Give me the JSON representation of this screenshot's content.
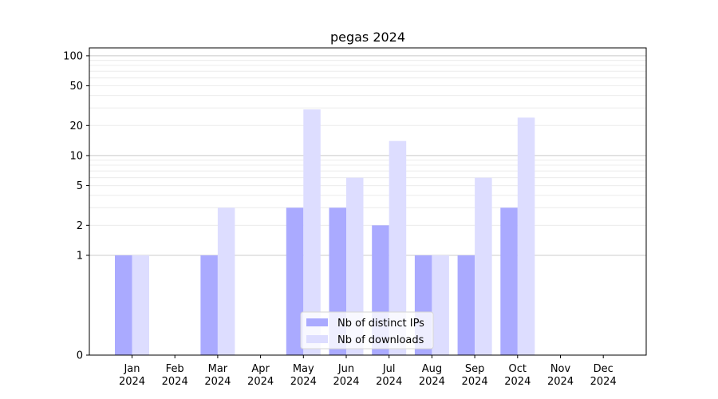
{
  "chart_data": {
    "type": "bar",
    "title": "pegas 2024",
    "xlabel": "",
    "ylabel": "",
    "y_scale": "symlog",
    "ylim": [
      0,
      120
    ],
    "y_ticks": [
      0,
      1,
      2,
      5,
      10,
      20,
      50,
      100
    ],
    "categories": [
      [
        "Jan",
        "2024"
      ],
      [
        "Feb",
        "2024"
      ],
      [
        "Mar",
        "2024"
      ],
      [
        "Apr",
        "2024"
      ],
      [
        "May",
        "2024"
      ],
      [
        "Jun",
        "2024"
      ],
      [
        "Jul",
        "2024"
      ],
      [
        "Aug",
        "2024"
      ],
      [
        "Sep",
        "2024"
      ],
      [
        "Oct",
        "2024"
      ],
      [
        "Nov",
        "2024"
      ],
      [
        "Dec",
        "2024"
      ]
    ],
    "series": [
      {
        "name": "Nb of distinct IPs",
        "color": "#aaaaff",
        "values": [
          1,
          0,
          1,
          0,
          3,
          3,
          2,
          1,
          1,
          3,
          0,
          0
        ]
      },
      {
        "name": "Nb of downloads",
        "color": "#ddddff",
        "values": [
          1,
          0,
          3,
          0,
          29,
          6,
          14,
          1,
          6,
          24,
          0,
          0
        ]
      }
    ],
    "legend": "lower-center",
    "grid": true
  }
}
